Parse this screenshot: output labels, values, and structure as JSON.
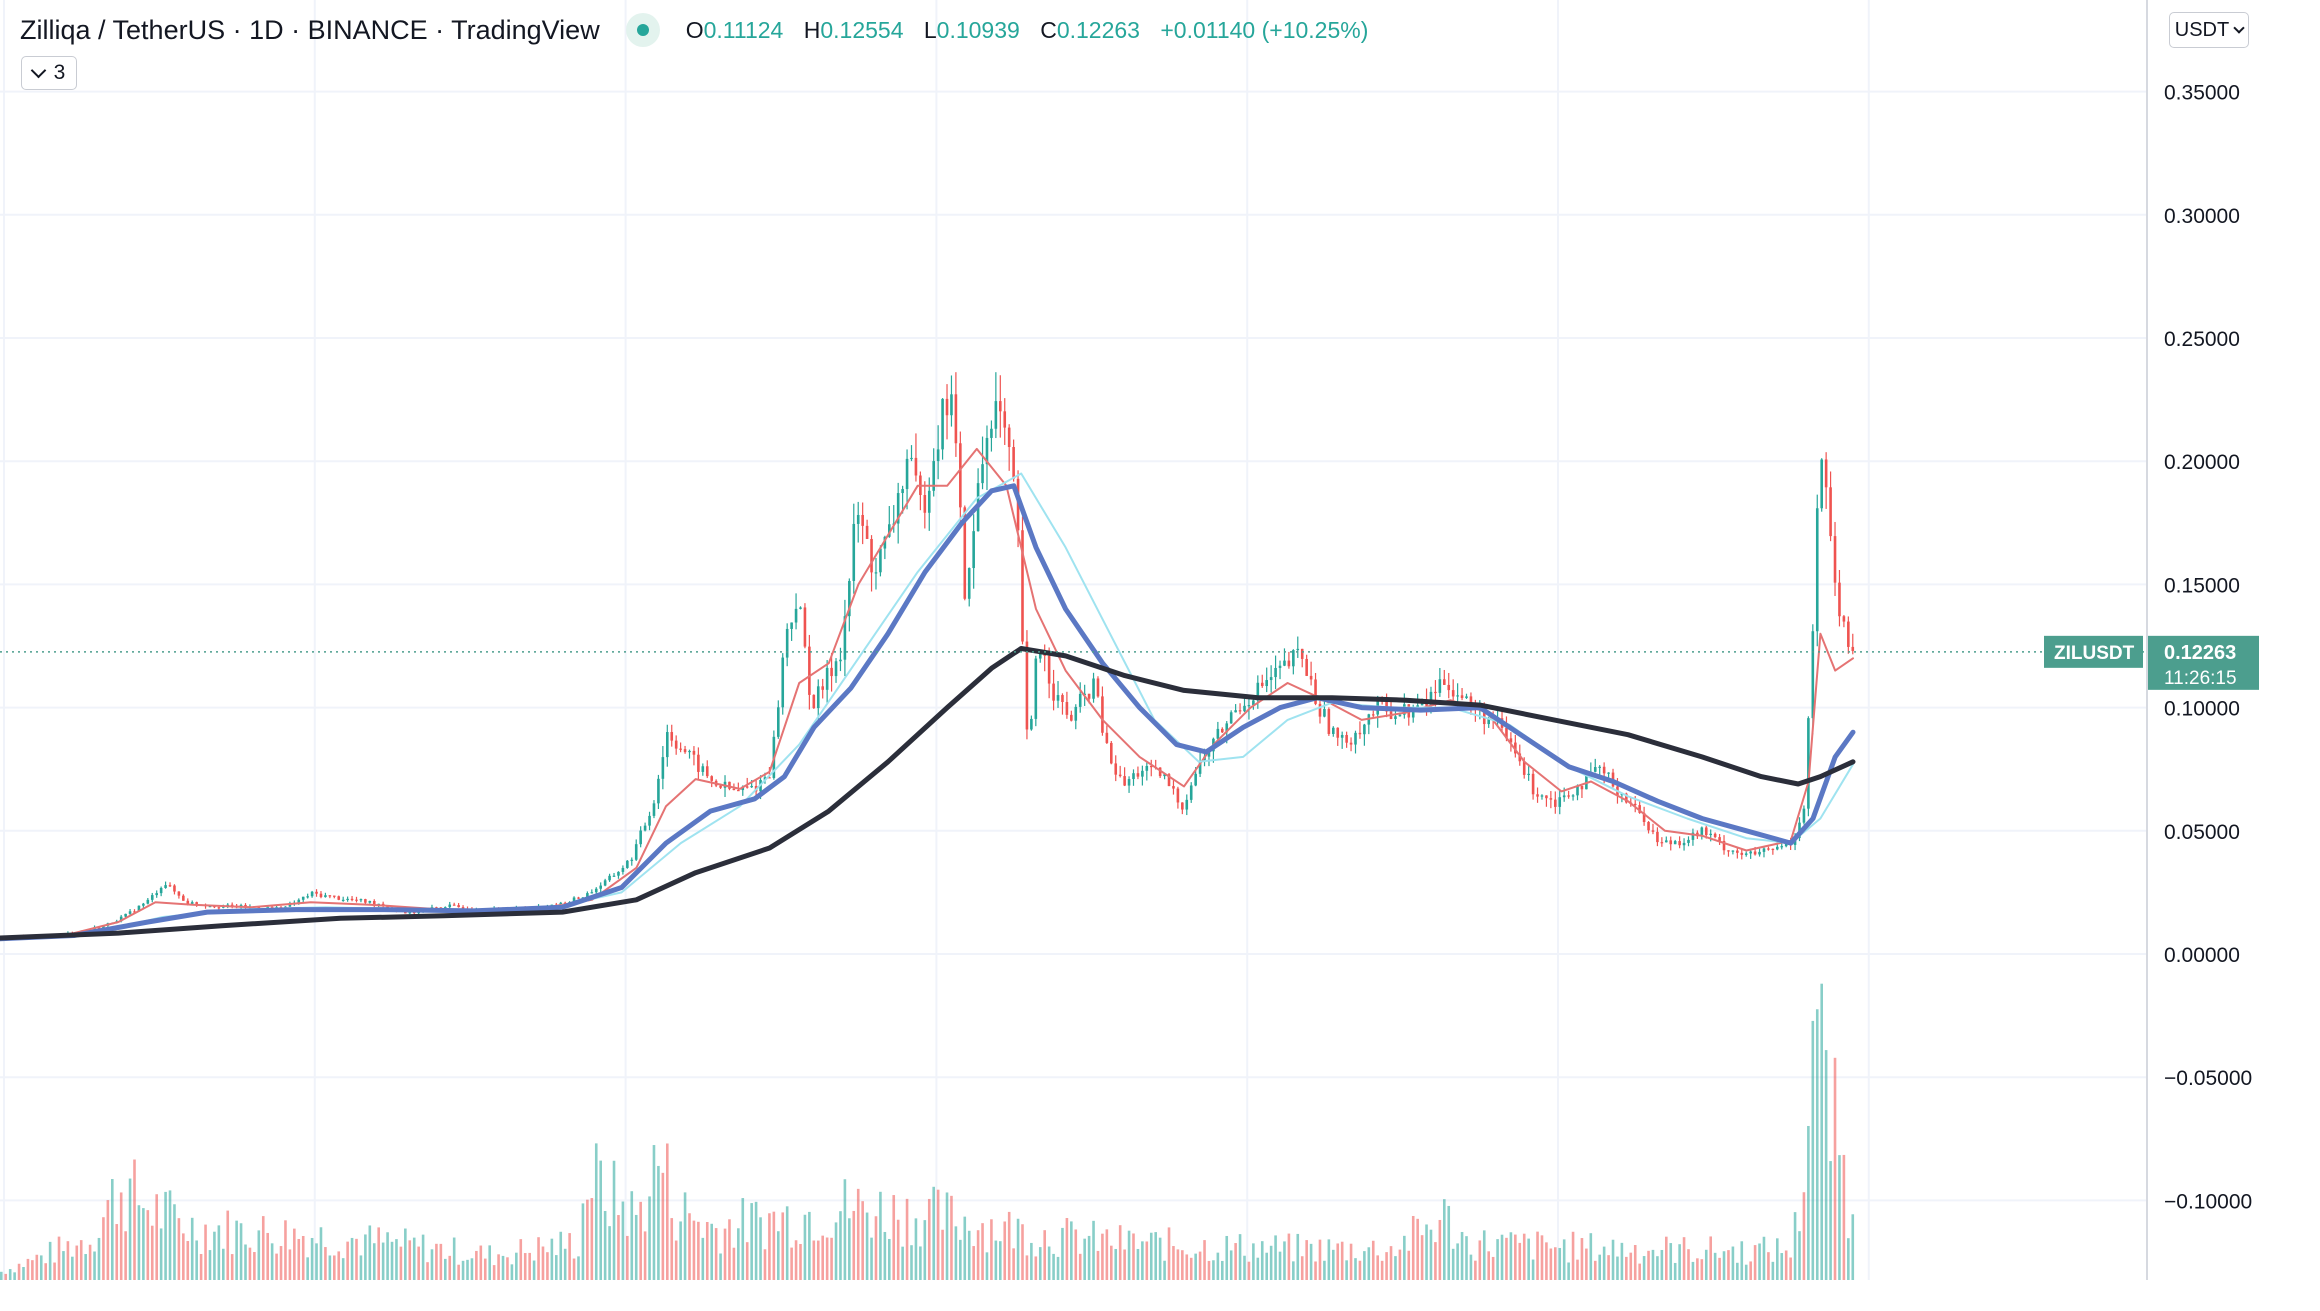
{
  "header": {
    "symbol_title": "Zilliqa / TetherUS · 1D · BINANCE · TradingView",
    "status_color": "#26a69a",
    "ohlc": {
      "o_label": "O",
      "o": "0.11124",
      "h_label": "H",
      "h": "0.12554",
      "l_label": "L",
      "l": "0.10939",
      "c_label": "C",
      "c": "0.12263",
      "change": "+0.01140 (+10.25%)"
    },
    "indicators_toggle": "3",
    "currency": "USDT"
  },
  "colors": {
    "up": "#26a69a",
    "down": "#ef5350",
    "ma_fast": "#e57373",
    "ma_light": "#9fe3f0",
    "ma_mid": "#5b78c4",
    "ma_slow": "#2b2e3a",
    "grid": "#f0f3fa",
    "axis_text": "#131722",
    "label_bg": "#4c9e8e"
  },
  "chart_data": {
    "type": "candlestick",
    "yaxis": {
      "ticks": [
        "0.35000",
        "0.30000",
        "0.25000",
        "0.20000",
        "0.15000",
        "0.10000",
        "0.05000",
        "0.00000",
        "−0.05000",
        "−0.10000"
      ],
      "ylim": [
        -0.13,
        0.37
      ]
    },
    "grid": true,
    "last_price": {
      "symbol": "ZILUSDT",
      "price": "0.12263",
      "countdown": "11:26:15",
      "value": 0.12263
    },
    "price_path": [
      [
        0,
        0.0065
      ],
      [
        25,
        0.0068
      ],
      [
        50,
        0.0085
      ],
      [
        70,
        0.0115
      ],
      [
        85,
        0.016
      ],
      [
        100,
        0.022
      ],
      [
        110,
        0.029
      ],
      [
        125,
        0.021
      ],
      [
        145,
        0.0195
      ],
      [
        170,
        0.019
      ],
      [
        190,
        0.0185
      ],
      [
        210,
        0.0245
      ],
      [
        230,
        0.0225
      ],
      [
        255,
        0.0205
      ],
      [
        275,
        0.0165
      ],
      [
        300,
        0.0195
      ],
      [
        330,
        0.018
      ],
      [
        355,
        0.0185
      ],
      [
        375,
        0.0195
      ],
      [
        395,
        0.024
      ],
      [
        410,
        0.03
      ],
      [
        425,
        0.038
      ],
      [
        440,
        0.06
      ],
      [
        450,
        0.09
      ],
      [
        465,
        0.08
      ],
      [
        480,
        0.07
      ],
      [
        495,
        0.066
      ],
      [
        510,
        0.068
      ],
      [
        520,
        0.075
      ],
      [
        530,
        0.13
      ],
      [
        538,
        0.145
      ],
      [
        548,
        0.1
      ],
      [
        558,
        0.112
      ],
      [
        568,
        0.125
      ],
      [
        578,
        0.18
      ],
      [
        590,
        0.155
      ],
      [
        600,
        0.17
      ],
      [
        612,
        0.2
      ],
      [
        622,
        0.18
      ],
      [
        632,
        0.21
      ],
      [
        642,
        0.23
      ],
      [
        652,
        0.14
      ],
      [
        660,
        0.19
      ],
      [
        670,
        0.225
      ],
      [
        678,
        0.21
      ],
      [
        686,
        0.18
      ],
      [
        694,
        0.075
      ],
      [
        700,
        0.13
      ],
      [
        712,
        0.105
      ],
      [
        722,
        0.095
      ],
      [
        738,
        0.11
      ],
      [
        748,
        0.08
      ],
      [
        758,
        0.068
      ],
      [
        770,
        0.075
      ],
      [
        785,
        0.072
      ],
      [
        798,
        0.06
      ],
      [
        808,
        0.075
      ],
      [
        820,
        0.087
      ],
      [
        835,
        0.1
      ],
      [
        850,
        0.108
      ],
      [
        865,
        0.115
      ],
      [
        878,
        0.122
      ],
      [
        890,
        0.1
      ],
      [
        905,
        0.085
      ],
      [
        915,
        0.09
      ],
      [
        930,
        0.1
      ],
      [
        945,
        0.098
      ],
      [
        960,
        0.1
      ],
      [
        975,
        0.112
      ],
      [
        985,
        0.105
      ],
      [
        995,
        0.1
      ],
      [
        1010,
        0.093
      ],
      [
        1020,
        0.085
      ],
      [
        1035,
        0.067
      ],
      [
        1050,
        0.062
      ],
      [
        1065,
        0.068
      ],
      [
        1080,
        0.075
      ],
      [
        1095,
        0.065
      ],
      [
        1110,
        0.055
      ],
      [
        1120,
        0.045
      ],
      [
        1135,
        0.046
      ],
      [
        1150,
        0.05
      ],
      [
        1165,
        0.043
      ],
      [
        1180,
        0.04
      ],
      [
        1195,
        0.042
      ],
      [
        1210,
        0.045
      ],
      [
        1218,
        0.06
      ],
      [
        1224,
        0.13
      ],
      [
        1229,
        0.21
      ],
      [
        1235,
        0.17
      ],
      [
        1241,
        0.14
      ],
      [
        1247,
        0.125
      ],
      [
        1252,
        0.12263
      ]
    ],
    "series": [
      {
        "type": "line",
        "color_key": "ma_fast",
        "points": [
          [
            0,
            0.0065
          ],
          [
            40,
            0.007
          ],
          [
            80,
            0.013
          ],
          [
            105,
            0.021
          ],
          [
            130,
            0.02
          ],
          [
            170,
            0.019
          ],
          [
            210,
            0.021
          ],
          [
            250,
            0.02
          ],
          [
            300,
            0.018
          ],
          [
            360,
            0.018
          ],
          [
            400,
            0.022
          ],
          [
            430,
            0.035
          ],
          [
            450,
            0.06
          ],
          [
            470,
            0.071
          ],
          [
            500,
            0.067
          ],
          [
            520,
            0.074
          ],
          [
            540,
            0.11
          ],
          [
            560,
            0.118
          ],
          [
            580,
            0.15
          ],
          [
            600,
            0.17
          ],
          [
            620,
            0.19
          ],
          [
            640,
            0.19
          ],
          [
            660,
            0.205
          ],
          [
            680,
            0.19
          ],
          [
            700,
            0.14
          ],
          [
            720,
            0.115
          ],
          [
            745,
            0.095
          ],
          [
            770,
            0.08
          ],
          [
            800,
            0.068
          ],
          [
            820,
            0.085
          ],
          [
            845,
            0.1
          ],
          [
            870,
            0.11
          ],
          [
            895,
            0.103
          ],
          [
            920,
            0.095
          ],
          [
            950,
            0.098
          ],
          [
            980,
            0.103
          ],
          [
            1005,
            0.098
          ],
          [
            1030,
            0.078
          ],
          [
            1055,
            0.066
          ],
          [
            1075,
            0.07
          ],
          [
            1100,
            0.062
          ],
          [
            1125,
            0.05
          ],
          [
            1150,
            0.048
          ],
          [
            1180,
            0.042
          ],
          [
            1210,
            0.046
          ],
          [
            1222,
            0.07
          ],
          [
            1230,
            0.13
          ],
          [
            1240,
            0.115
          ],
          [
            1252,
            0.12
          ]
        ]
      },
      {
        "type": "line",
        "color_key": "ma_light",
        "points": [
          [
            0,
            0.006
          ],
          [
            60,
            0.008
          ],
          [
            110,
            0.015
          ],
          [
            160,
            0.018
          ],
          [
            220,
            0.019
          ],
          [
            280,
            0.018
          ],
          [
            360,
            0.017
          ],
          [
            420,
            0.025
          ],
          [
            460,
            0.045
          ],
          [
            500,
            0.06
          ],
          [
            540,
            0.085
          ],
          [
            580,
            0.12
          ],
          [
            620,
            0.155
          ],
          [
            660,
            0.185
          ],
          [
            690,
            0.195
          ],
          [
            720,
            0.165
          ],
          [
            750,
            0.13
          ],
          [
            780,
            0.095
          ],
          [
            810,
            0.078
          ],
          [
            840,
            0.08
          ],
          [
            870,
            0.095
          ],
          [
            900,
            0.102
          ],
          [
            940,
            0.1
          ],
          [
            980,
            0.1
          ],
          [
            1020,
            0.093
          ],
          [
            1060,
            0.076
          ],
          [
            1100,
            0.064
          ],
          [
            1140,
            0.055
          ],
          [
            1180,
            0.047
          ],
          [
            1210,
            0.045
          ],
          [
            1230,
            0.055
          ],
          [
            1252,
            0.077
          ]
        ]
      },
      {
        "type": "line",
        "color_key": "ma_mid",
        "width": 5,
        "points": [
          [
            0,
            0.0062
          ],
          [
            50,
            0.0075
          ],
          [
            100,
            0.013
          ],
          [
            140,
            0.017
          ],
          [
            200,
            0.018
          ],
          [
            260,
            0.018
          ],
          [
            320,
            0.0175
          ],
          [
            380,
            0.019
          ],
          [
            420,
            0.027
          ],
          [
            450,
            0.045
          ],
          [
            480,
            0.058
          ],
          [
            510,
            0.063
          ],
          [
            530,
            0.072
          ],
          [
            550,
            0.092
          ],
          [
            575,
            0.108
          ],
          [
            600,
            0.13
          ],
          [
            625,
            0.155
          ],
          [
            650,
            0.175
          ],
          [
            670,
            0.188
          ],
          [
            685,
            0.19
          ],
          [
            700,
            0.165
          ],
          [
            720,
            0.14
          ],
          [
            745,
            0.118
          ],
          [
            770,
            0.1
          ],
          [
            795,
            0.085
          ],
          [
            815,
            0.082
          ],
          [
            840,
            0.092
          ],
          [
            865,
            0.1
          ],
          [
            890,
            0.104
          ],
          [
            920,
            0.1
          ],
          [
            960,
            0.099
          ],
          [
            1000,
            0.1
          ],
          [
            1030,
            0.088
          ],
          [
            1060,
            0.076
          ],
          [
            1090,
            0.07
          ],
          [
            1120,
            0.062
          ],
          [
            1150,
            0.055
          ],
          [
            1180,
            0.05
          ],
          [
            1210,
            0.045
          ],
          [
            1225,
            0.055
          ],
          [
            1240,
            0.08
          ],
          [
            1252,
            0.09
          ]
        ]
      },
      {
        "type": "line",
        "color_key": "ma_slow",
        "width": 5,
        "points": [
          [
            0,
            0.0065
          ],
          [
            80,
            0.0085
          ],
          [
            150,
            0.0115
          ],
          [
            230,
            0.0145
          ],
          [
            300,
            0.0155
          ],
          [
            380,
            0.017
          ],
          [
            430,
            0.022
          ],
          [
            470,
            0.033
          ],
          [
            520,
            0.043
          ],
          [
            560,
            0.058
          ],
          [
            600,
            0.078
          ],
          [
            640,
            0.1
          ],
          [
            670,
            0.116
          ],
          [
            690,
            0.124
          ],
          [
            720,
            0.121
          ],
          [
            760,
            0.113
          ],
          [
            800,
            0.107
          ],
          [
            850,
            0.104
          ],
          [
            900,
            0.104
          ],
          [
            950,
            0.103
          ],
          [
            1000,
            0.101
          ],
          [
            1050,
            0.095
          ],
          [
            1100,
            0.089
          ],
          [
            1150,
            0.08
          ],
          [
            1190,
            0.072
          ],
          [
            1215,
            0.069
          ],
          [
            1230,
            0.072
          ],
          [
            1252,
            0.078
          ]
        ]
      }
    ],
    "volume_profile": [
      [
        0,
        0.004
      ],
      [
        60,
        0.02
      ],
      [
        80,
        0.045
      ],
      [
        100,
        0.035
      ],
      [
        130,
        0.025
      ],
      [
        200,
        0.022
      ],
      [
        260,
        0.018
      ],
      [
        330,
        0.012
      ],
      [
        390,
        0.018
      ],
      [
        396,
        0.05
      ],
      [
        430,
        0.03
      ],
      [
        445,
        0.06
      ],
      [
        455,
        0.035
      ],
      [
        480,
        0.025
      ],
      [
        530,
        0.03
      ],
      [
        570,
        0.035
      ],
      [
        640,
        0.03
      ],
      [
        700,
        0.022
      ],
      [
        760,
        0.018
      ],
      [
        820,
        0.016
      ],
      [
        880,
        0.015
      ],
      [
        940,
        0.015
      ],
      [
        975,
        0.03
      ],
      [
        990,
        0.018
      ],
      [
        1050,
        0.016
      ],
      [
        1110,
        0.015
      ],
      [
        1180,
        0.014
      ],
      [
        1210,
        0.015
      ],
      [
        1218,
        0.05
      ],
      [
        1223,
        0.13
      ],
      [
        1228,
        0.12
      ],
      [
        1233,
        0.085
      ],
      [
        1240,
        0.07
      ],
      [
        1247,
        0.045
      ],
      [
        1252,
        0.02
      ]
    ]
  }
}
